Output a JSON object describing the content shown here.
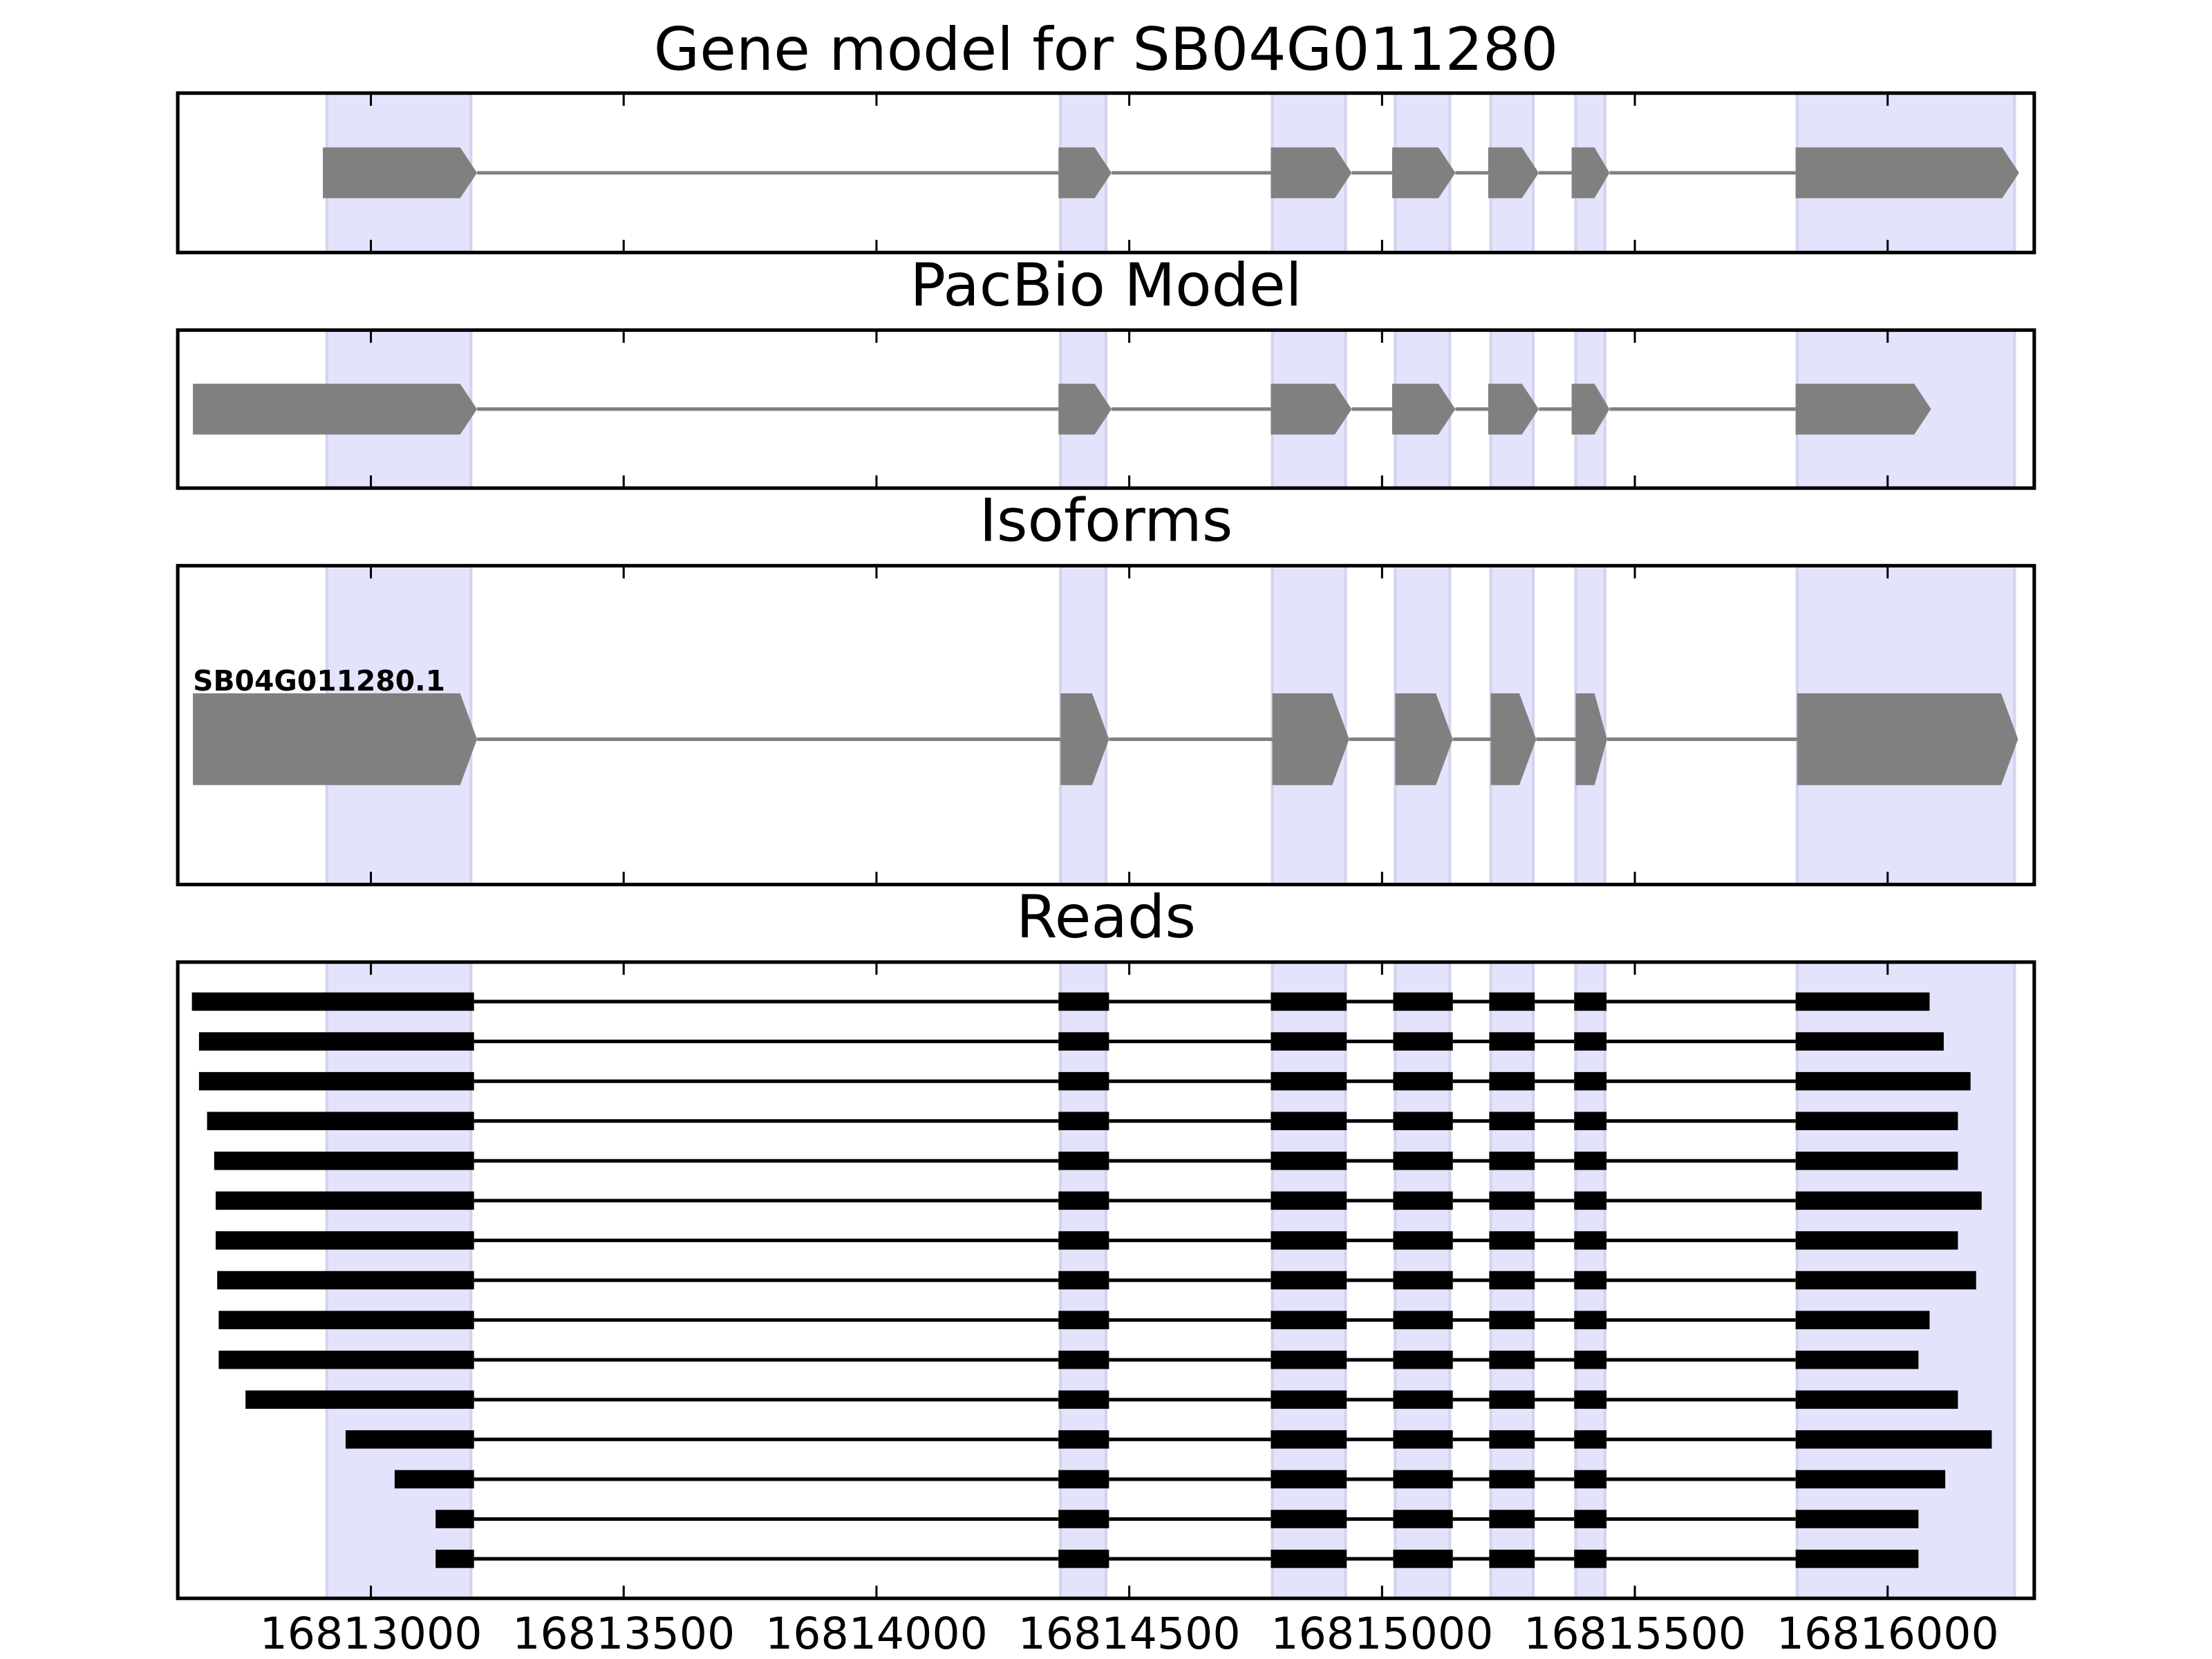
{
  "chart_data": [
    {
      "type": "gene-track",
      "title": "Gene model for SB04G011280",
      "color": "#808080",
      "highlight_color": "#e3e3fb",
      "xlim": [
        16812618,
        16816290
      ],
      "xticks": [
        16813000,
        16813500,
        16814000,
        16814500,
        16815000,
        16815500,
        16816000
      ],
      "highlights": [
        [
          16812913,
          16813198
        ],
        [
          16814364,
          16814454
        ],
        [
          16814783,
          16814928
        ],
        [
          16815026,
          16815134
        ],
        [
          16815215,
          16815299
        ],
        [
          16815383,
          16815441
        ],
        [
          16815821,
          16816251
        ]
      ],
      "exons": [
        [
          16812905,
          16813210
        ],
        [
          16814360,
          16814465
        ],
        [
          16814780,
          16814940
        ],
        [
          16815020,
          16815145
        ],
        [
          16815210,
          16815310
        ],
        [
          16815375,
          16815450
        ],
        [
          16815818,
          16816260
        ]
      ]
    },
    {
      "type": "gene-track",
      "title": "PacBio Model",
      "color": "#808080",
      "highlight_color": "#e3e3fb",
      "xlim": [
        16812618,
        16816290
      ],
      "xticks": [
        16813000,
        16813500,
        16814000,
        16814500,
        16815000,
        16815500,
        16816000
      ],
      "highlights": [
        [
          16812913,
          16813198
        ],
        [
          16814364,
          16814454
        ],
        [
          16814783,
          16814928
        ],
        [
          16815026,
          16815134
        ],
        [
          16815215,
          16815299
        ],
        [
          16815383,
          16815441
        ],
        [
          16815821,
          16816251
        ]
      ],
      "exons": [
        [
          16812648,
          16813210
        ],
        [
          16814360,
          16814465
        ],
        [
          16814780,
          16814940
        ],
        [
          16815020,
          16815145
        ],
        [
          16815210,
          16815310
        ],
        [
          16815375,
          16815450
        ],
        [
          16815818,
          16816086
        ]
      ]
    },
    {
      "type": "isoform-track",
      "title": "Isoforms",
      "color": "#808080",
      "highlight_color": "#e3e3fb",
      "xlim": [
        16812618,
        16816290
      ],
      "xticks": [
        16813000,
        16813500,
        16814000,
        16814500,
        16815000,
        16815500,
        16816000
      ],
      "highlights": [
        [
          16812913,
          16813198
        ],
        [
          16814364,
          16814454
        ],
        [
          16814783,
          16814928
        ],
        [
          16815026,
          16815134
        ],
        [
          16815215,
          16815299
        ],
        [
          16815383,
          16815441
        ],
        [
          16815821,
          16816251
        ]
      ],
      "isoforms": [
        {
          "name": "SB04G011280.1",
          "exons": [
            [
              16812648,
              16813210
            ],
            [
              16814364,
              16814460
            ],
            [
              16814783,
              16814935
            ],
            [
              16815026,
              16815140
            ],
            [
              16815215,
              16815305
            ],
            [
              16815383,
              16815445
            ],
            [
              16815821,
              16816258
            ]
          ]
        }
      ]
    },
    {
      "type": "reads",
      "title": "Reads",
      "color": "#000000",
      "highlight_color": "#e3e3fb",
      "xlim": [
        16812618,
        16816290
      ],
      "xticks": [
        16813000,
        16813500,
        16814000,
        16814500,
        16815000,
        16815500,
        16816000
      ],
      "highlights": [
        [
          16812913,
          16813198
        ],
        [
          16814364,
          16814454
        ],
        [
          16814783,
          16814928
        ],
        [
          16815026,
          16815134
        ],
        [
          16815215,
          16815299
        ],
        [
          16815383,
          16815441
        ],
        [
          16815821,
          16816251
        ]
      ],
      "reads": [
        [
          [
            16812646,
            16813204
          ],
          [
            16814360,
            16814460
          ],
          [
            16814780,
            16814930
          ],
          [
            16815022,
            16815140
          ],
          [
            16815212,
            16815302
          ],
          [
            16815380,
            16815444
          ],
          [
            16815818,
            16816083
          ]
        ],
        [
          [
            16812660,
            16813204
          ],
          [
            16814360,
            16814460
          ],
          [
            16814780,
            16814930
          ],
          [
            16815022,
            16815140
          ],
          [
            16815212,
            16815302
          ],
          [
            16815380,
            16815444
          ],
          [
            16815818,
            16816111
          ]
        ],
        [
          [
            16812660,
            16813204
          ],
          [
            16814360,
            16814460
          ],
          [
            16814780,
            16814930
          ],
          [
            16815022,
            16815140
          ],
          [
            16815212,
            16815302
          ],
          [
            16815380,
            16815444
          ],
          [
            16815818,
            16816164
          ]
        ],
        [
          [
            16812676,
            16813204
          ],
          [
            16814360,
            16814460
          ],
          [
            16814780,
            16814930
          ],
          [
            16815022,
            16815140
          ],
          [
            16815212,
            16815302
          ],
          [
            16815380,
            16815444
          ],
          [
            16815818,
            16816139
          ]
        ],
        [
          [
            16812690,
            16813204
          ],
          [
            16814360,
            16814460
          ],
          [
            16814780,
            16814930
          ],
          [
            16815022,
            16815140
          ],
          [
            16815212,
            16815302
          ],
          [
            16815380,
            16815444
          ],
          [
            16815818,
            16816139
          ]
        ],
        [
          [
            16812693,
            16813204
          ],
          [
            16814360,
            16814460
          ],
          [
            16814780,
            16814930
          ],
          [
            16815022,
            16815140
          ],
          [
            16815212,
            16815302
          ],
          [
            16815380,
            16815444
          ],
          [
            16815818,
            16816186
          ]
        ],
        [
          [
            16812693,
            16813204
          ],
          [
            16814360,
            16814460
          ],
          [
            16814780,
            16814930
          ],
          [
            16815022,
            16815140
          ],
          [
            16815212,
            16815302
          ],
          [
            16815380,
            16815444
          ],
          [
            16815818,
            16816139
          ]
        ],
        [
          [
            16812696,
            16813204
          ],
          [
            16814360,
            16814460
          ],
          [
            16814780,
            16814930
          ],
          [
            16815022,
            16815140
          ],
          [
            16815212,
            16815302
          ],
          [
            16815380,
            16815444
          ],
          [
            16815818,
            16816175
          ]
        ],
        [
          [
            16812699,
            16813204
          ],
          [
            16814360,
            16814460
          ],
          [
            16814780,
            16814930
          ],
          [
            16815022,
            16815140
          ],
          [
            16815212,
            16815302
          ],
          [
            16815380,
            16815444
          ],
          [
            16815818,
            16816083
          ]
        ],
        [
          [
            16812699,
            16813204
          ],
          [
            16814360,
            16814460
          ],
          [
            16814780,
            16814930
          ],
          [
            16815022,
            16815140
          ],
          [
            16815212,
            16815302
          ],
          [
            16815380,
            16815444
          ],
          [
            16815818,
            16816061
          ]
        ],
        [
          [
            16812752,
            16813204
          ],
          [
            16814360,
            16814460
          ],
          [
            16814780,
            16814930
          ],
          [
            16815022,
            16815140
          ],
          [
            16815212,
            16815302
          ],
          [
            16815380,
            16815444
          ],
          [
            16815818,
            16816139
          ]
        ],
        [
          [
            16812950,
            16813204
          ],
          [
            16814360,
            16814460
          ],
          [
            16814780,
            16814930
          ],
          [
            16815022,
            16815140
          ],
          [
            16815212,
            16815302
          ],
          [
            16815380,
            16815444
          ],
          [
            16815818,
            16816206
          ]
        ],
        [
          [
            16813047,
            16813204
          ],
          [
            16814360,
            16814460
          ],
          [
            16814780,
            16814930
          ],
          [
            16815022,
            16815140
          ],
          [
            16815212,
            16815302
          ],
          [
            16815380,
            16815444
          ],
          [
            16815818,
            16816114
          ]
        ],
        [
          [
            16813128,
            16813204
          ],
          [
            16814360,
            16814460
          ],
          [
            16814780,
            16814930
          ],
          [
            16815022,
            16815140
          ],
          [
            16815212,
            16815302
          ],
          [
            16815380,
            16815444
          ],
          [
            16815818,
            16816061
          ]
        ],
        [
          [
            16813128,
            16813204
          ],
          [
            16814360,
            16814460
          ],
          [
            16814780,
            16814930
          ],
          [
            16815022,
            16815140
          ],
          [
            16815212,
            16815302
          ],
          [
            16815380,
            16815444
          ],
          [
            16815818,
            16816061
          ]
        ]
      ]
    }
  ]
}
